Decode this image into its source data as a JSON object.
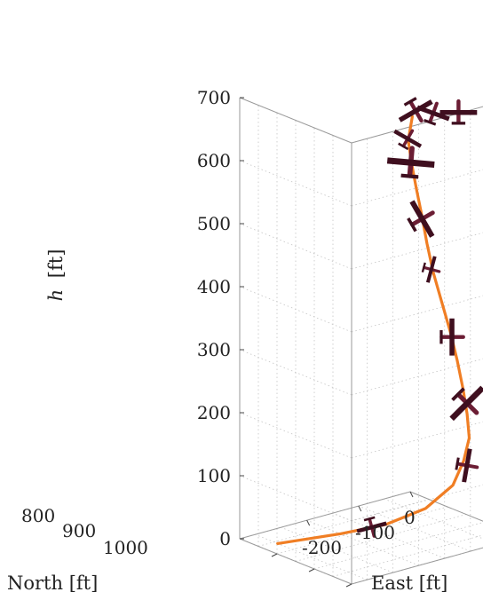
{
  "chart_data": {
    "type": "line3d",
    "xlabel": "North [ft]",
    "ylabel": "East [ft]",
    "zlabel_var": "h",
    "zlabel_unit": "[ft]",
    "xlim": [
      800,
      1100
    ],
    "ylim": [
      -330,
      0
    ],
    "zlim": [
      0,
      700
    ],
    "x_ticks": [
      "800",
      "900",
      "1000"
    ],
    "y_ticks": [
      "-200",
      "-100",
      "0"
    ],
    "z_ticks": [
      "0",
      "100",
      "200",
      "300",
      "400",
      "500",
      "600",
      "700"
    ],
    "grid": true,
    "series": [
      {
        "color": "#f07e24",
        "points": [
          {
            "north": 1040,
            "east": -300,
            "h": 0
          },
          {
            "north": 1010,
            "east": -200,
            "h": 0
          },
          {
            "north": 985,
            "east": -130,
            "h": 5
          },
          {
            "north": 955,
            "east": -75,
            "h": 25
          },
          {
            "north": 930,
            "east": -40,
            "h": 60
          },
          {
            "north": 915,
            "east": -30,
            "h": 100
          },
          {
            "north": 900,
            "east": -30,
            "h": 140
          },
          {
            "north": 885,
            "east": -45,
            "h": 185
          },
          {
            "north": 875,
            "east": -60,
            "h": 230
          },
          {
            "north": 870,
            "east": -75,
            "h": 280
          },
          {
            "north": 868,
            "east": -90,
            "h": 330
          },
          {
            "north": 870,
            "east": -105,
            "h": 380
          },
          {
            "north": 872,
            "east": -120,
            "h": 430
          },
          {
            "north": 868,
            "east": -135,
            "h": 480
          },
          {
            "north": 858,
            "east": -152,
            "h": 530
          },
          {
            "north": 848,
            "east": -170,
            "h": 580
          },
          {
            "north": 840,
            "east": -185,
            "h": 625
          },
          {
            "north": 835,
            "east": -195,
            "h": 665
          },
          {
            "north": 838,
            "east": -185,
            "h": 700
          }
        ]
      }
    ],
    "aircraft_markers": [
      {
        "north": 995,
        "east": -150,
        "h": 2,
        "heading": 165,
        "scale": 0.9
      },
      {
        "north": 905,
        "east": -30,
        "h": 95,
        "heading": 100,
        "scale": 1.0
      },
      {
        "north": 888,
        "east": -42,
        "h": 200,
        "heading": 135,
        "scale": 1.3
      },
      {
        "north": 869,
        "east": -85,
        "h": 320,
        "heading": 90,
        "scale": 1.1
      },
      {
        "north": 872,
        "east": -123,
        "h": 435,
        "heading": 105,
        "scale": 0.8
      },
      {
        "north": 859,
        "east": -150,
        "h": 525,
        "heading": 60,
        "scale": 1.2
      },
      {
        "north": 839,
        "east": -187,
        "h": 628,
        "heading": 5,
        "scale": 1.4
      },
      {
        "north": 836,
        "east": -195,
        "h": 668,
        "heading": 30,
        "scale": 0.9
      },
      {
        "north": 842,
        "east": -175,
        "h": 705,
        "heading": 150,
        "scale": 1.1
      },
      {
        "north": 830,
        "east": -150,
        "h": 700,
        "heading": 20,
        "scale": 1.0
      },
      {
        "north": 818,
        "east": -110,
        "h": 695,
        "heading": 0,
        "scale": 1.1
      }
    ],
    "colors": {
      "trajectory": "#f07e24",
      "aircraft": "#6b1d34",
      "aircraft_dark": "#3f0f1f"
    }
  }
}
